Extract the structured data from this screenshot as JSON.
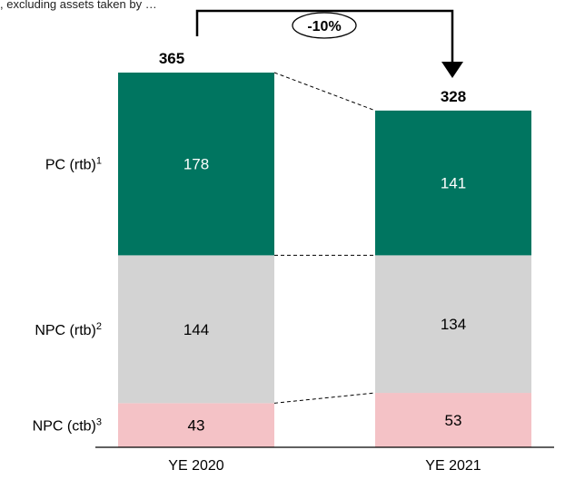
{
  "caption": ", excluding assets taken by …",
  "colors": {
    "pc": "#007560",
    "npc_rtb": "#d3d3d3",
    "npc_ctb": "#f4c2c6",
    "pc_text": "#ffffff",
    "dark_text": "#000000"
  },
  "chart_data": {
    "type": "bar",
    "stacked": true,
    "categories": [
      "YE 2020",
      "YE 2021"
    ],
    "series": [
      {
        "name": "NPC (ctb)³",
        "label": "NPC (ctb)",
        "sup": "3",
        "values": [
          43,
          53
        ],
        "color": "#f4c2c6"
      },
      {
        "name": "NPC (rtb)²",
        "label": "NPC (rtb)",
        "sup": "2",
        "values": [
          144,
          134
        ],
        "color": "#d3d3d3"
      },
      {
        "name": "PC (rtb)¹",
        "label": "PC (rtb)",
        "sup": "1",
        "values": [
          178,
          141
        ],
        "color": "#007560"
      }
    ],
    "totals": [
      365,
      328
    ],
    "change_label": "-10%"
  }
}
